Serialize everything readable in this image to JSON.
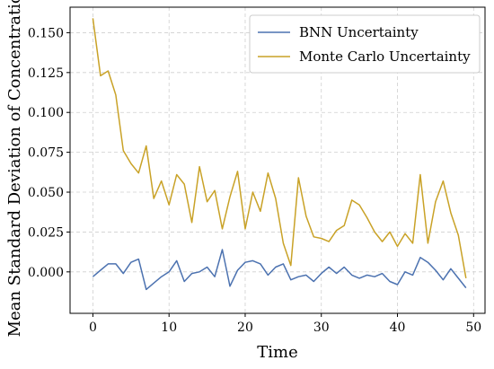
{
  "chart_data": {
    "type": "line",
    "xlabel": "Time",
    "ylabel": "Mean Standard Deviation of Concentration",
    "xlim": [
      -3,
      51.5
    ],
    "ylim": [
      -0.026,
      0.166
    ],
    "xticks": [
      0,
      10,
      20,
      30,
      40,
      50
    ],
    "yticks": [
      0.0,
      0.025,
      0.05,
      0.075,
      0.1,
      0.125,
      0.15
    ],
    "xtick_labels": [
      "0",
      "10",
      "20",
      "30",
      "40",
      "50"
    ],
    "ytick_labels": [
      "0.000",
      "0.025",
      "0.050",
      "0.075",
      "0.100",
      "0.125",
      "0.150"
    ],
    "grid": true,
    "legend_position": "top-right",
    "x": [
      0,
      1,
      2,
      3,
      4,
      5,
      6,
      7,
      8,
      9,
      10,
      11,
      12,
      13,
      14,
      15,
      16,
      17,
      18,
      19,
      20,
      21,
      22,
      23,
      24,
      25,
      26,
      27,
      28,
      29,
      30,
      31,
      32,
      33,
      34,
      35,
      36,
      37,
      38,
      39,
      40,
      41,
      42,
      43,
      44,
      45,
      46,
      47,
      48,
      49
    ],
    "series": [
      {
        "name": "BNN Uncertainty",
        "color": "#4c72b0",
        "values": [
          -0.003,
          0.001,
          0.005,
          0.005,
          -0.001,
          0.006,
          0.008,
          -0.011,
          -0.007,
          -0.003,
          0.0,
          0.007,
          -0.006,
          -0.001,
          0.0,
          0.003,
          -0.003,
          0.014,
          -0.009,
          0.001,
          0.006,
          0.007,
          0.005,
          -0.002,
          0.003,
          0.005,
          -0.005,
          -0.003,
          -0.002,
          -0.006,
          -0.001,
          0.003,
          -0.001,
          0.003,
          -0.002,
          -0.004,
          -0.002,
          -0.003,
          -0.001,
          -0.006,
          -0.008,
          0.0,
          -0.002,
          0.009,
          0.006,
          0.001,
          -0.005,
          0.002,
          -0.004,
          -0.01
        ]
      },
      {
        "name": "Monte Carlo Uncertainty",
        "color": "#c9a227",
        "values": [
          0.159,
          0.123,
          0.126,
          0.111,
          0.076,
          0.068,
          0.062,
          0.079,
          0.046,
          0.057,
          0.042,
          0.061,
          0.055,
          0.031,
          0.066,
          0.044,
          0.051,
          0.027,
          0.047,
          0.063,
          0.027,
          0.05,
          0.038,
          0.062,
          0.046,
          0.018,
          0.004,
          0.059,
          0.035,
          0.022,
          0.021,
          0.019,
          0.026,
          0.029,
          0.045,
          0.042,
          0.034,
          0.025,
          0.019,
          0.025,
          0.016,
          0.024,
          0.018,
          0.061,
          0.018,
          0.044,
          0.057,
          0.037,
          0.023,
          -0.004
        ]
      }
    ]
  }
}
